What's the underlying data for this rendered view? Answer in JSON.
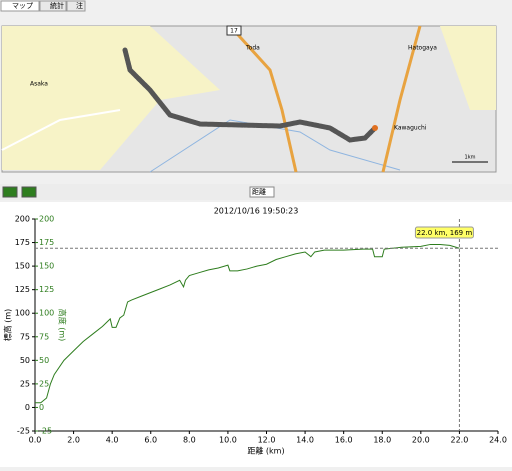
{
  "tabs": [
    "マップ",
    "統計",
    "注"
  ],
  "map": {
    "labels": [
      "Toda",
      "Asaka",
      "Hatogaya",
      "Kawaguchi"
    ],
    "route_sign": "17",
    "scale": "1km"
  },
  "toolbar": {
    "x_mode": "距離"
  },
  "chart_data": {
    "type": "line",
    "title": "2012/10/16 19:50:23",
    "x_label": "距離 (km)",
    "y_label": "標高 (m)",
    "y2_label": "高度 (m)",
    "x": [
      0,
      0.3,
      0.6,
      0.8,
      1.0,
      1.5,
      2.0,
      2.5,
      3.0,
      3.5,
      3.9,
      4.0,
      4.2,
      4.4,
      4.6,
      4.8,
      5.0,
      5.5,
      6.0,
      6.5,
      7.0,
      7.5,
      7.7,
      7.8,
      8.0,
      8.5,
      9.0,
      9.5,
      10.0,
      10.1,
      10.5,
      11.0,
      11.5,
      12.0,
      12.5,
      13.0,
      13.5,
      14.0,
      14.3,
      14.5,
      15.0,
      16.0,
      17.0,
      17.5,
      17.6,
      18.0,
      18.1,
      19.0,
      20.0,
      20.5,
      21.0,
      21.5,
      22.0
    ],
    "series": [
      {
        "name": "標高",
        "color": "#2e7d1e",
        "values": [
          5,
          5,
          10,
          25,
          35,
          50,
          60,
          70,
          78,
          86,
          94,
          85,
          85,
          95,
          98,
          112,
          114,
          118,
          122,
          126,
          130,
          135,
          128,
          135,
          140,
          143,
          146,
          148,
          151,
          145,
          145,
          147,
          150,
          152,
          157,
          160,
          163,
          165,
          160,
          165,
          167,
          167,
          168,
          168,
          160,
          160,
          168,
          170,
          171,
          173,
          173,
          172,
          169
        ]
      }
    ],
    "xlim": [
      0,
      24
    ],
    "xticks": [
      {
        "value": 0,
        "label": "0.0"
      },
      {
        "value": 2,
        "label": "2.0"
      },
      {
        "value": 4,
        "label": "4.0"
      },
      {
        "value": 6,
        "label": "6.0"
      },
      {
        "value": 8,
        "label": "8.0"
      },
      {
        "value": 10,
        "label": "10.0"
      },
      {
        "value": 12,
        "label": "12.0"
      },
      {
        "value": 14,
        "label": "14.0"
      },
      {
        "value": 16,
        "label": "16.0"
      },
      {
        "value": 18,
        "label": "18.0"
      },
      {
        "value": 20,
        "label": "20.0"
      },
      {
        "value": 22,
        "label": "22.0"
      },
      {
        "value": 24,
        "label": "24.0"
      }
    ],
    "ylim": [
      -25,
      200
    ],
    "yticks": [
      -25,
      0,
      25,
      50,
      75,
      100,
      125,
      150,
      175,
      200
    ],
    "y2lim": [
      -25,
      200
    ],
    "y2ticks": [
      -25,
      0,
      25,
      50,
      75,
      100,
      125,
      150,
      175,
      200
    ],
    "y2color": "#2e7d1e",
    "crosshair": {
      "x": 22,
      "y": 169
    },
    "annotation": "22.0 km, 169 m"
  }
}
